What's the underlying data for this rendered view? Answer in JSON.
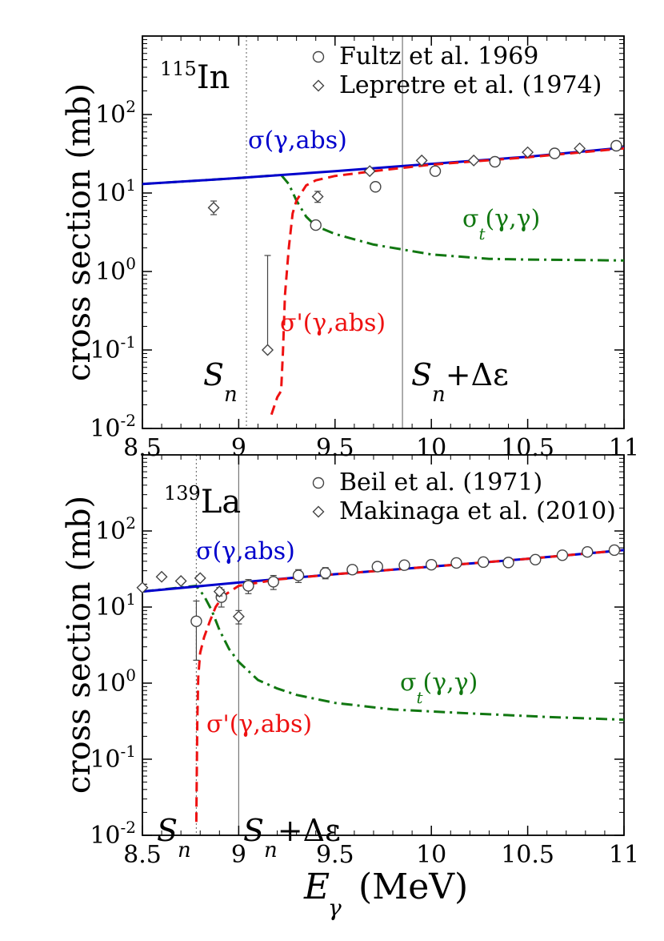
{
  "colors": {
    "abs": "#0000cc",
    "abs_prime": "#ee1111",
    "elastic": "#117711",
    "axis": "#000000",
    "marker": "#444444"
  },
  "xlabel": {
    "main": "E",
    "sub": "γ",
    "units": " (MeV)"
  },
  "chart_data": [
    {
      "type": "line",
      "nucleus": {
        "mass": "115",
        "symbol": "In"
      },
      "ylabel": "cross section (mb)",
      "xlim": [
        8.5,
        11
      ],
      "ylim": [
        0.01,
        1000
      ],
      "log_y": true,
      "x_ticks": [
        8.5,
        9,
        9.5,
        10,
        10.5,
        11
      ],
      "x_tick_labels": [
        "8.5",
        "9",
        "9.5",
        "10",
        "10.5",
        "11"
      ],
      "y_tick_base": "10",
      "y_tick_exps": [
        "-2",
        "-1",
        "0",
        "1",
        "2"
      ],
      "y_tick_values": [
        0.01,
        0.1,
        1,
        10,
        100
      ],
      "legend": [
        {
          "marker": "circle",
          "label": "Fultz et al. 1969"
        },
        {
          "marker": "diamond",
          "label": "Lepretre et al. (1974)"
        }
      ],
      "sn": 9.04,
      "sn_delta": 9.85,
      "sn_label": {
        "s": "S",
        "sub": "n"
      },
      "sn_delta_label": {
        "s": "S",
        "sub": "n",
        "suffix": "+Δε"
      },
      "curve_labels": {
        "abs": "σ(γ,abs)",
        "abs_prime": "σ'(γ,abs)",
        "elastic": {
          "sigma": "σ",
          "sub": "t",
          "rest": "(γ,γ)"
        }
      },
      "series": [
        {
          "key": "abs",
          "style": "solid",
          "x": [
            8.5,
            9.0,
            9.5,
            10.0,
            10.5,
            11.0
          ],
          "y": [
            13.0,
            15.5,
            19.0,
            23.5,
            29.0,
            38.0
          ]
        },
        {
          "key": "abs_prime",
          "style": "dashed",
          "x": [
            9.17,
            9.2,
            9.22,
            9.23,
            9.24,
            9.26,
            9.28,
            9.3,
            9.35,
            9.4,
            9.5,
            9.7,
            10.0,
            10.5,
            11.0
          ],
          "y": [
            0.015,
            0.025,
            0.03,
            0.1,
            0.5,
            2.0,
            5.5,
            8.0,
            12.5,
            14.5,
            16.5,
            19.0,
            23.0,
            28.5,
            37.0
          ]
        },
        {
          "key": "elastic",
          "style": "dashdot",
          "x": [
            8.5,
            9.0,
            9.22,
            9.26,
            9.3,
            9.35,
            9.4,
            9.5,
            9.7,
            10.0,
            10.3,
            10.5,
            10.8,
            11.0
          ],
          "y": [
            13.0,
            15.5,
            17.0,
            13.0,
            8.0,
            5.0,
            3.8,
            3.0,
            2.2,
            1.65,
            1.45,
            1.42,
            1.4,
            1.38
          ]
        }
      ],
      "data_points": {
        "circle": {
          "x": [
            9.4,
            9.71,
            10.02,
            10.33,
            10.64,
            10.96
          ],
          "y": [
            3.9,
            12.0,
            19.0,
            25.0,
            32.0,
            40.0
          ],
          "err_low": [
            null,
            null,
            null,
            null,
            null,
            null
          ],
          "err_high": [
            null,
            null,
            null,
            null,
            null,
            null
          ]
        },
        "diamond": {
          "x": [
            8.87,
            9.15,
            9.41,
            9.68,
            9.95,
            10.22,
            10.5,
            10.77
          ],
          "y": [
            6.5,
            0.1,
            9.0,
            19.0,
            26.0,
            26.0,
            33.0,
            37.0
          ],
          "err_low": [
            5.3,
            null,
            7.6,
            null,
            null,
            null,
            null,
            null
          ],
          "err_high": [
            7.9,
            1.6,
            10.5,
            null,
            null,
            null,
            null,
            null
          ]
        }
      }
    },
    {
      "type": "line",
      "nucleus": {
        "mass": "139",
        "symbol": "La"
      },
      "ylabel": "cross section (mb)",
      "xlim": [
        8.5,
        11
      ],
      "ylim": [
        0.01,
        1000
      ],
      "log_y": true,
      "x_ticks": [
        8.5,
        9,
        9.5,
        10,
        10.5,
        11
      ],
      "x_tick_labels": [
        "8.5",
        "9",
        "9.5",
        "10",
        "10.5",
        "11"
      ],
      "y_tick_base": "10",
      "y_tick_exps": [
        "-2",
        "-1",
        "0",
        "1",
        "2"
      ],
      "y_tick_values": [
        0.01,
        0.1,
        1,
        10,
        100
      ],
      "legend": [
        {
          "marker": "circle",
          "label": "Beil et al. (1971)"
        },
        {
          "marker": "diamond",
          "label": "Makinaga et al. (2010)"
        }
      ],
      "sn": 8.78,
      "sn_delta": 9.0,
      "sn_label": {
        "s": "S",
        "sub": "n"
      },
      "sn_delta_label": {
        "s": "S",
        "sub": "n",
        "suffix": "+Δε"
      },
      "curve_labels": {
        "abs": "σ(γ,abs)",
        "abs_prime": "σ'(γ,abs)",
        "elastic": {
          "sigma": "σ",
          "sub": "t",
          "rest": "(γ,γ)"
        }
      },
      "series": [
        {
          "key": "abs",
          "style": "solid",
          "x": [
            8.5,
            9.0,
            9.5,
            10.0,
            10.5,
            11.0
          ],
          "y": [
            16.0,
            21.0,
            27.0,
            34.0,
            43.0,
            56.0
          ]
        },
        {
          "key": "abs_prime",
          "style": "dashed",
          "x": [
            8.78,
            8.785,
            8.79,
            8.8,
            8.82,
            8.85,
            8.88,
            8.92,
            9.0,
            9.2,
            9.5,
            10.0,
            10.5,
            11.0
          ],
          "y": [
            0.015,
            0.3,
            1.2,
            2.5,
            4.0,
            6.5,
            10.0,
            14.0,
            19.0,
            23.0,
            27.0,
            34.0,
            43.0,
            56.0
          ]
        },
        {
          "key": "elastic",
          "style": "dashdot",
          "x": [
            8.5,
            8.78,
            8.82,
            8.86,
            8.9,
            8.95,
            9.0,
            9.1,
            9.2,
            9.3,
            9.5,
            9.8,
            10.2,
            10.6,
            11.0
          ],
          "y": [
            16.0,
            19.0,
            14.0,
            9.0,
            5.0,
            2.8,
            1.9,
            1.1,
            0.85,
            0.7,
            0.55,
            0.45,
            0.4,
            0.36,
            0.33
          ]
        }
      ],
      "data_points": {
        "circle": {
          "x": [
            8.78,
            8.91,
            9.05,
            9.18,
            9.31,
            9.45,
            9.59,
            9.72,
            9.86,
            10.0,
            10.13,
            10.27,
            10.4,
            10.54,
            10.68,
            10.81,
            10.95
          ],
          "y": [
            6.5,
            13.5,
            19.0,
            21.5,
            26.0,
            28.0,
            31.0,
            34.0,
            35.5,
            36.0,
            38.0,
            39.0,
            38.5,
            42.0,
            48.0,
            53.0,
            56.0
          ],
          "err_low": [
            2.0,
            10.0,
            15.0,
            17.0,
            21.0,
            23.5,
            27.0,
            31.0,
            32.0,
            33.0,
            35.0,
            36.0,
            34.5,
            38.0,
            44.5,
            49.0,
            52.0
          ],
          "err_high": [
            12.0,
            17.0,
            23.0,
            26.0,
            31.0,
            33.0,
            35.5,
            37.0,
            39.0,
            39.0,
            41.0,
            42.0,
            42.5,
            46.0,
            51.5,
            57.0,
            60.0
          ]
        },
        "diamond": {
          "x": [
            8.5,
            8.6,
            8.7,
            8.8,
            8.9,
            9.0
          ],
          "y": [
            18.0,
            25.0,
            22.0,
            24.0,
            16.0,
            7.5
          ],
          "err_low": [
            null,
            null,
            null,
            null,
            14.0,
            6.0
          ],
          "err_high": [
            null,
            null,
            null,
            null,
            18.0,
            9.0
          ]
        }
      }
    }
  ]
}
